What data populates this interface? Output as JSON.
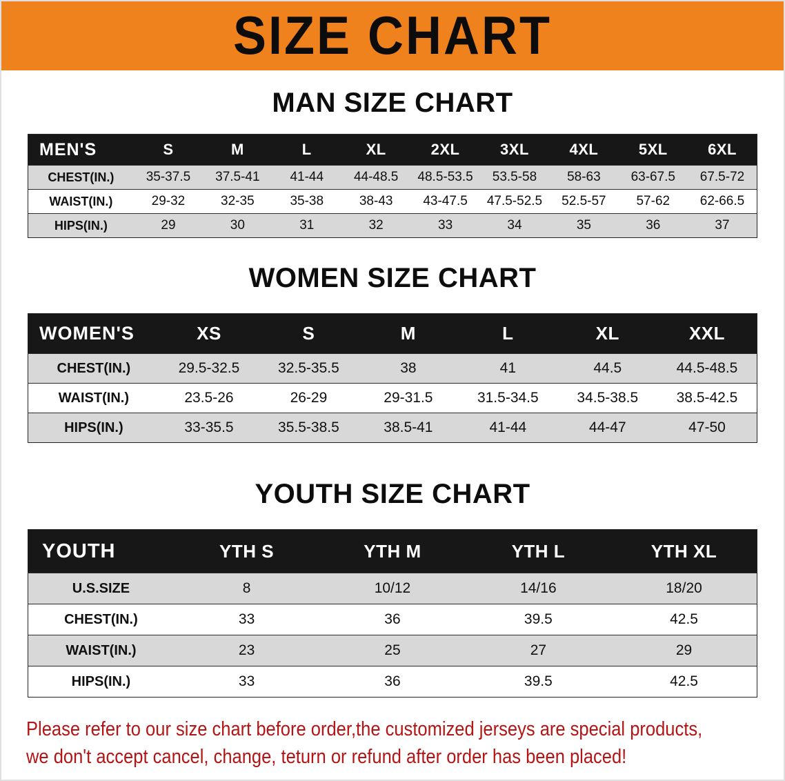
{
  "banner": {
    "title": "SIZE CHART"
  },
  "colors": {
    "banner_bg": "#f0821e",
    "table_header_bg": "#171717",
    "table_header_text": "#ffffff",
    "row_alt_bg": "#d8d8d8",
    "notice_text": "#b41414"
  },
  "men": {
    "heading": "MAN SIZE CHART",
    "table": {
      "header": [
        "MEN'S",
        "S",
        "M",
        "L",
        "XL",
        "2XL",
        "3XL",
        "4XL",
        "5XL",
        "6XL"
      ],
      "rows": [
        {
          "label": "CHEST(IN.)",
          "values": [
            "35-37.5",
            "37.5-41",
            "41-44",
            "44-48.5",
            "48.5-53.5",
            "53.5-58",
            "58-63",
            "63-67.5",
            "67.5-72"
          ]
        },
        {
          "label": "WAIST(IN.)",
          "values": [
            "29-32",
            "32-35",
            "35-38",
            "38-43",
            "43-47.5",
            "47.5-52.5",
            "52.5-57",
            "57-62",
            "62-66.5"
          ]
        },
        {
          "label": "HIPS(IN.)",
          "values": [
            "29",
            "30",
            "31",
            "32",
            "33",
            "34",
            "35",
            "36",
            "37"
          ]
        }
      ]
    }
  },
  "women": {
    "heading": "WOMEN SIZE CHART",
    "table": {
      "header": [
        "WOMEN'S",
        "XS",
        "S",
        "M",
        "L",
        "XL",
        "XXL"
      ],
      "rows": [
        {
          "label": "CHEST(IN.)",
          "values": [
            "29.5-32.5",
            "32.5-35.5",
            "38",
            "41",
            "44.5",
            "44.5-48.5"
          ]
        },
        {
          "label": "WAIST(IN.)",
          "values": [
            "23.5-26",
            "26-29",
            "29-31.5",
            "31.5-34.5",
            "34.5-38.5",
            "38.5-42.5"
          ]
        },
        {
          "label": "HIPS(IN.)",
          "values": [
            "33-35.5",
            "35.5-38.5",
            "38.5-41",
            "41-44",
            "44-47",
            "47-50"
          ]
        }
      ]
    }
  },
  "youth": {
    "heading": "YOUTH SIZE CHART",
    "table": {
      "header": [
        "YOUTH",
        "YTH S",
        "YTH M",
        "YTH L",
        "YTH XL"
      ],
      "rows": [
        {
          "label": "U.S.SIZE",
          "values": [
            "8",
            "10/12",
            "14/16",
            "18/20"
          ]
        },
        {
          "label": "CHEST(IN.)",
          "values": [
            "33",
            "36",
            "39.5",
            "42.5"
          ]
        },
        {
          "label": "WAIST(IN.)",
          "values": [
            "23",
            "25",
            "27",
            "29"
          ]
        },
        {
          "label": "HIPS(IN.)",
          "values": [
            "33",
            "36",
            "39.5",
            "42.5"
          ]
        }
      ]
    }
  },
  "notice": {
    "line1": "Please refer to our size chart before order,the customized jerseys are special products,",
    "line2": "we don't accept cancel, change, teturn or refund after order has been placed!"
  }
}
